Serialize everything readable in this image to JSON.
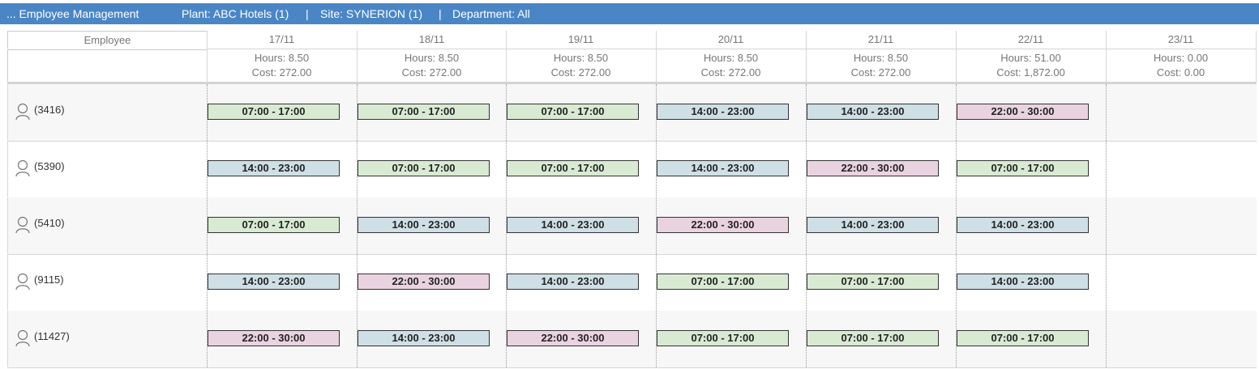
{
  "header": {
    "title": "... Employee Management",
    "plant": "Plant: ABC Hotels (1)",
    "sep1": "|",
    "site": "Site: SYNERION (1)",
    "sep2": "|",
    "department": "Department: All"
  },
  "grid": {
    "employee_col_label": "Employee",
    "days": [
      {
        "date": "17/11",
        "hours": "Hours: 8.50",
        "cost": "Cost: 272.00"
      },
      {
        "date": "18/11",
        "hours": "Hours: 8.50",
        "cost": "Cost: 272.00"
      },
      {
        "date": "19/11",
        "hours": "Hours: 8.50",
        "cost": "Cost: 272.00"
      },
      {
        "date": "20/11",
        "hours": "Hours: 8.50",
        "cost": "Cost: 272.00"
      },
      {
        "date": "21/11",
        "hours": "Hours: 8.50",
        "cost": "Cost: 272.00"
      },
      {
        "date": "22/11",
        "hours": "Hours: 51.00",
        "cost": "Cost: 1,872.00"
      },
      {
        "date": "23/11",
        "hours": "Hours: 0.00",
        "cost": "Cost: 0.00"
      }
    ],
    "shift_colors": {
      "07:00 - 17:00": "#d9ead3",
      "14:00 - 23:00": "#cfdfe6",
      "22:00 - 30:00": "#ead3e0"
    },
    "employees": [
      {
        "label": "(3416)",
        "shifts": [
          "07:00 - 17:00",
          "07:00 - 17:00",
          "07:00 - 17:00",
          "14:00 - 23:00",
          "14:00 - 23:00",
          "22:00 - 30:00",
          ""
        ]
      },
      {
        "label": "(5390)",
        "shifts": [
          "14:00 - 23:00",
          "07:00 - 17:00",
          "07:00 - 17:00",
          "14:00 - 23:00",
          "22:00 - 30:00",
          "07:00 - 17:00",
          ""
        ]
      },
      {
        "label": "(5410)",
        "shifts": [
          "07:00 - 17:00",
          "14:00 - 23:00",
          "14:00 - 23:00",
          "22:00 - 30:00",
          "14:00 - 23:00",
          "14:00 - 23:00",
          ""
        ]
      },
      {
        "label": "(9115)",
        "shifts": [
          "14:00 - 23:00",
          "22:00 - 30:00",
          "14:00 - 23:00",
          "07:00 - 17:00",
          "07:00 - 17:00",
          "14:00 - 23:00",
          ""
        ]
      },
      {
        "label": "(11427)",
        "shifts": [
          "22:00 - 30:00",
          "14:00 - 23:00",
          "22:00 - 30:00",
          "07:00 - 17:00",
          "07:00 - 17:00",
          "07:00 - 17:00",
          ""
        ]
      }
    ]
  }
}
